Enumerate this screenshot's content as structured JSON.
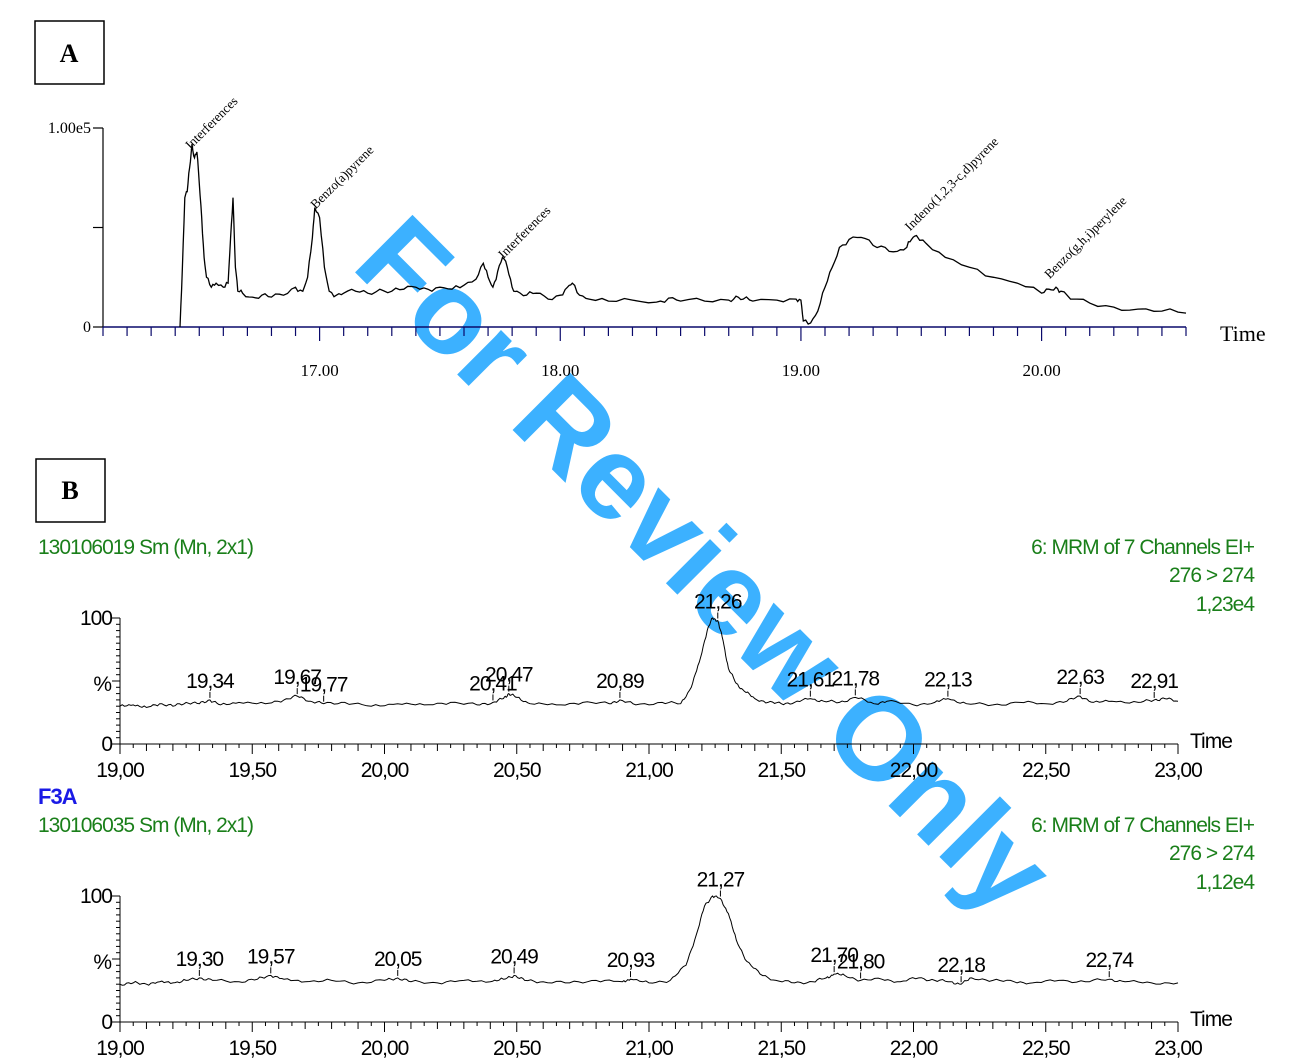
{
  "watermark": {
    "text": "For Review Only",
    "color": "#1aa3ff"
  },
  "colors": {
    "trace": "#000000",
    "axis_a": "#0a0a6b",
    "header_green": "#1a7f1a",
    "sample_blue": "#1a1ae6"
  },
  "chart_data": [
    {
      "type": "line",
      "panel_label": "A",
      "xlabel": "Time",
      "ylabel": "",
      "xlim": [
        16.1,
        20.6
      ],
      "ylim": [
        0,
        100000
      ],
      "x_ticks": [
        "17.00",
        "18.00",
        "19.00",
        "20.00"
      ],
      "x_tick_values": [
        17,
        18,
        19,
        20
      ],
      "y_ticks": [
        "1.00e5",
        "0"
      ],
      "y_tick_values": [
        100000,
        0
      ],
      "series": [
        {
          "x": [
            16.42,
            16.43,
            16.44,
            16.45,
            16.46,
            16.47,
            16.48,
            16.49,
            16.5,
            16.51,
            16.52,
            16.53,
            16.55,
            16.57,
            16.6,
            16.62,
            16.63,
            16.64,
            16.65,
            16.66,
            16.68,
            16.72,
            16.76,
            16.8,
            16.85,
            16.9,
            16.93,
            16.95,
            16.97,
            16.98,
            17.0,
            17.02,
            17.04,
            17.07,
            17.1,
            17.15,
            17.2,
            17.25,
            17.3,
            17.35,
            17.4,
            17.45,
            17.5,
            17.55,
            17.6,
            17.65,
            17.68,
            17.7,
            17.72,
            17.74,
            17.76,
            17.78,
            17.8,
            17.82,
            17.86,
            17.9,
            17.95,
            18.0,
            18.03,
            18.05,
            18.08,
            18.12,
            18.2,
            18.3,
            18.4,
            18.45,
            18.5,
            18.6,
            18.7,
            18.73,
            18.76,
            18.8,
            18.9,
            18.98,
            19.0,
            19.01,
            19.04,
            19.07,
            19.1,
            19.13,
            19.16,
            19.2,
            19.25,
            19.3,
            19.35,
            19.4,
            19.44,
            19.46,
            19.48,
            19.52,
            19.6,
            19.7,
            19.8,
            19.9,
            20.0,
            20.03,
            20.06,
            20.08,
            20.12,
            20.2,
            20.3,
            20.4,
            20.5,
            20.6
          ],
          "values": [
            0,
            30000,
            65000,
            68000,
            80000,
            92000,
            85000,
            88000,
            72000,
            55000,
            35000,
            25000,
            20000,
            22000,
            20000,
            22000,
            45000,
            65000,
            30000,
            18000,
            17000,
            15000,
            16000,
            15000,
            16000,
            20000,
            18000,
            25000,
            45000,
            60000,
            55000,
            30000,
            18000,
            16000,
            17000,
            18000,
            17000,
            19000,
            18000,
            19000,
            20000,
            19000,
            20000,
            19000,
            21000,
            24000,
            32000,
            25000,
            20000,
            28000,
            35000,
            30000,
            20000,
            18000,
            16000,
            17000,
            14000,
            16000,
            20000,
            22000,
            16000,
            14000,
            13000,
            13500,
            12500,
            14500,
            13000,
            13000,
            13500,
            15500,
            14000,
            13000,
            13500,
            14000,
            13500,
            3000,
            2000,
            8000,
            20000,
            30000,
            40000,
            44000,
            45000,
            41000,
            40000,
            38000,
            40000,
            44000,
            46000,
            42000,
            35000,
            30000,
            25000,
            22000,
            17000,
            19000,
            20000,
            18000,
            14000,
            12000,
            10000,
            9000,
            8000,
            7000
          ]
        }
      ],
      "annotations": [
        {
          "text": "Interferences",
          "x": 16.48
        },
        {
          "text": "Benzo(a)pyrene",
          "x": 17.0
        },
        {
          "text": "Interferences",
          "x": 17.78
        },
        {
          "text": "Indeno(1,2,3-c,d)pyrene",
          "x": 19.47
        },
        {
          "text": "Benzo(g,h,i)perylene",
          "x": 20.05
        }
      ]
    },
    {
      "type": "line",
      "panel_label": "B",
      "sample_label": "",
      "file_label": "130106019 Sm (Mn, 2x1)",
      "channel_label": "6: MRM of 7 Channels EI+",
      "transition": "276 > 274",
      "intensity": "1,23e4",
      "xlabel": "Time",
      "ylabel": "%",
      "xlim": [
        19.0,
        23.0
      ],
      "ylim": [
        0,
        100
      ],
      "x_ticks": [
        "19,00",
        "19,50",
        "20,00",
        "20,50",
        "21,00",
        "21,50",
        "22,00",
        "22,50",
        "23,00"
      ],
      "x_tick_values": [
        19.0,
        19.5,
        20.0,
        20.5,
        21.0,
        21.5,
        22.0,
        22.5,
        23.0
      ],
      "y_ticks": [
        "100",
        "0"
      ],
      "y_tick_values": [
        100,
        0
      ],
      "series": [
        {
          "x": [
            19.0,
            19.05,
            19.1,
            19.15,
            19.2,
            19.25,
            19.3,
            19.34,
            19.38,
            19.45,
            19.55,
            19.62,
            19.67,
            19.72,
            19.77,
            19.85,
            19.95,
            20.05,
            20.15,
            20.25,
            20.35,
            20.41,
            20.45,
            20.47,
            20.5,
            20.55,
            20.65,
            20.75,
            20.85,
            20.89,
            20.95,
            21.05,
            21.12,
            21.16,
            21.19,
            21.22,
            21.24,
            21.26,
            21.28,
            21.3,
            21.33,
            21.36,
            21.4,
            21.45,
            21.5,
            21.55,
            21.61,
            21.66,
            21.72,
            21.78,
            21.85,
            21.9,
            22.0,
            22.08,
            22.13,
            22.2,
            22.3,
            22.4,
            22.5,
            22.58,
            22.63,
            22.68,
            22.75,
            22.85,
            22.91,
            22.95,
            23.0
          ],
          "values": [
            30,
            31,
            29,
            32,
            30,
            33,
            32,
            35,
            31,
            33,
            32,
            35,
            38,
            34,
            32,
            33,
            30,
            32,
            31,
            33,
            31,
            33,
            36,
            40,
            37,
            32,
            31,
            33,
            32,
            35,
            31,
            33,
            32,
            45,
            65,
            90,
            100,
            98,
            82,
            60,
            48,
            42,
            36,
            33,
            32,
            33,
            36,
            34,
            33,
            37,
            32,
            34,
            31,
            33,
            36,
            32,
            31,
            33,
            32,
            34,
            38,
            33,
            34,
            33,
            35,
            36,
            34
          ]
        }
      ],
      "peak_labels": [
        {
          "text": "19,34",
          "x": 19.34
        },
        {
          "text": "19,67",
          "x": 19.67
        },
        {
          "text": "19,77",
          "x": 19.77
        },
        {
          "text": "20,41",
          "x": 20.41
        },
        {
          "text": "20,47",
          "x": 20.47
        },
        {
          "text": "20,89",
          "x": 20.89
        },
        {
          "text": "21,26",
          "x": 21.26
        },
        {
          "text": "21,61",
          "x": 21.61
        },
        {
          "text": "21,78",
          "x": 21.78
        },
        {
          "text": "22,13",
          "x": 22.13
        },
        {
          "text": "22,63",
          "x": 22.63
        },
        {
          "text": "22,91",
          "x": 22.91
        }
      ]
    },
    {
      "type": "line",
      "panel_label": "",
      "sample_label": "F3A",
      "file_label": "130106035 Sm (Mn, 2x1)",
      "channel_label": "6: MRM of 7 Channels EI+",
      "transition": "276 > 274",
      "intensity": "1,12e4",
      "xlabel": "Time",
      "ylabel": "%",
      "xlim": [
        19.0,
        23.0
      ],
      "ylim": [
        0,
        100
      ],
      "x_ticks": [
        "19,00",
        "19,50",
        "20,00",
        "20,50",
        "21,00",
        "21,50",
        "22,00",
        "22,50",
        "23,00"
      ],
      "x_tick_values": [
        19.0,
        19.5,
        20.0,
        20.5,
        21.0,
        21.5,
        22.0,
        22.5,
        23.0
      ],
      "y_ticks": [
        "100",
        "0"
      ],
      "y_tick_values": [
        100,
        0
      ],
      "series": [
        {
          "x": [
            19.0,
            19.05,
            19.1,
            19.15,
            19.2,
            19.25,
            19.3,
            19.35,
            19.45,
            19.52,
            19.57,
            19.62,
            19.7,
            19.8,
            19.9,
            20.0,
            20.05,
            20.1,
            20.2,
            20.3,
            20.4,
            20.45,
            20.49,
            20.53,
            20.6,
            20.7,
            20.8,
            20.9,
            20.93,
            21.0,
            21.08,
            21.14,
            21.18,
            21.21,
            21.24,
            21.27,
            21.3,
            21.33,
            21.37,
            21.42,
            21.48,
            21.55,
            21.62,
            21.67,
            21.7,
            21.74,
            21.8,
            21.88,
            21.95,
            22.02,
            22.08,
            22.14,
            22.18,
            22.22,
            22.3,
            22.38,
            22.45,
            22.55,
            22.65,
            22.74,
            22.8,
            22.9,
            23.0
          ],
          "values": [
            30,
            31,
            30,
            32,
            31,
            33,
            35,
            33,
            32,
            34,
            37,
            34,
            32,
            33,
            31,
            33,
            35,
            32,
            31,
            33,
            32,
            34,
            37,
            33,
            32,
            31,
            33,
            32,
            34,
            31,
            33,
            45,
            70,
            92,
            100,
            98,
            86,
            65,
            48,
            38,
            33,
            31,
            32,
            35,
            38,
            37,
            33,
            34,
            32,
            35,
            33,
            32,
            30,
            35,
            33,
            32,
            31,
            33,
            32,
            34,
            32,
            31,
            31
          ]
        }
      ],
      "peak_labels": [
        {
          "text": "19,30",
          "x": 19.3
        },
        {
          "text": "19,57",
          "x": 19.57
        },
        {
          "text": "20,05",
          "x": 20.05
        },
        {
          "text": "20,49",
          "x": 20.49
        },
        {
          "text": "20,93",
          "x": 20.93
        },
        {
          "text": "21,27",
          "x": 21.27
        },
        {
          "text": "21,70",
          "x": 21.7
        },
        {
          "text": "21,80",
          "x": 21.8
        },
        {
          "text": "22,18",
          "x": 22.18
        },
        {
          "text": "22,74",
          "x": 22.74
        }
      ]
    }
  ]
}
